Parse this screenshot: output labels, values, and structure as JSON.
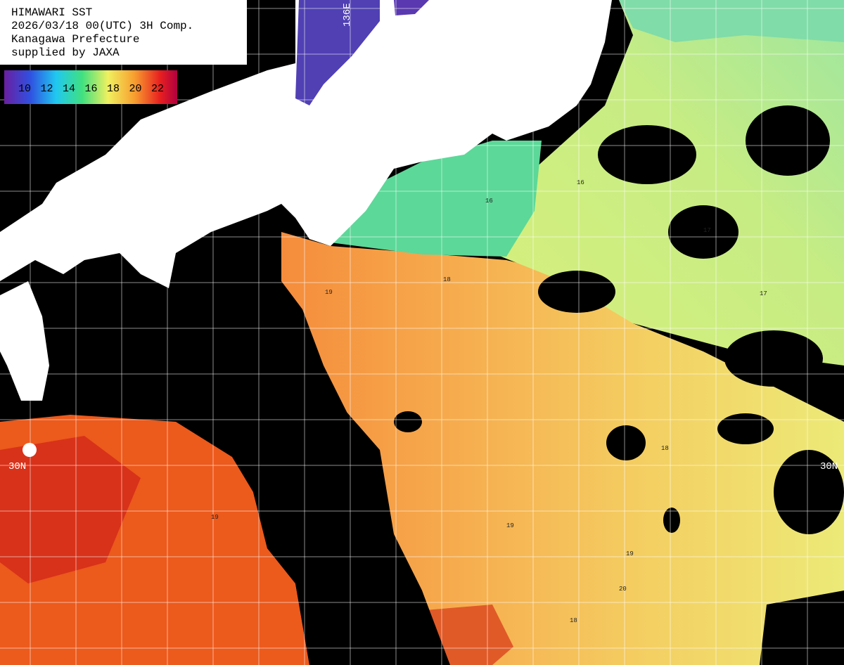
{
  "header": {
    "lines": [
      "HIMAWARI SST",
      "2026/03/18 00(UTC) 3H Comp.",
      "Kanagawa Prefecture",
      "supplied by JAXA"
    ]
  },
  "legend": {
    "labels": [
      10,
      12,
      14,
      16,
      18,
      20,
      22
    ]
  },
  "grid_labels": {
    "longitude": "136E",
    "latitude_left": "30N",
    "latitude_right": "30N"
  },
  "contour_labels": [
    "19",
    "19",
    "18",
    "18",
    "17",
    "17",
    "16",
    "16",
    "20",
    "19",
    "18",
    "19"
  ]
}
